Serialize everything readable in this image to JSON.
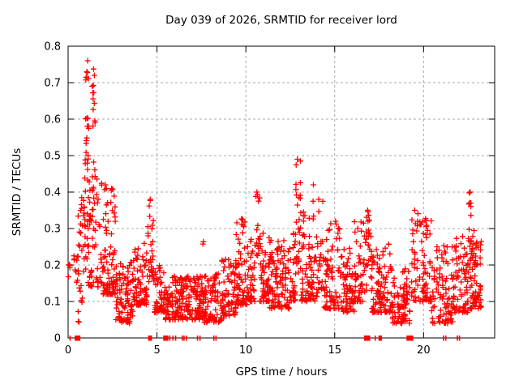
{
  "chart_data": {
    "type": "scatter",
    "title": "Day 039 of 2026, SRMTID for receiver lord",
    "xlabel": "GPS time / hours",
    "ylabel": "SRMTID / TECUs",
    "xlim": [
      0,
      24
    ],
    "ylim": [
      0,
      0.8
    ],
    "xticks": [
      0,
      5,
      10,
      15,
      20
    ],
    "yticks": [
      0,
      0.1,
      0.2,
      0.3,
      0.4,
      0.5,
      0.6,
      0.7,
      0.8
    ],
    "grid": true,
    "legend": "none",
    "marker": {
      "shape": "plus",
      "color": "#ff0000",
      "size": 7,
      "stroke_width": 1.3
    },
    "grid_color": "#a8a8a8",
    "axis_color": "#000000",
    "background": "#ffffff",
    "seed": 20260039,
    "scatter_segments": [
      {
        "x0": 0.02,
        "x1": 0.14,
        "n": 5,
        "ymin": 0.16,
        "ymax": 0.22,
        "bias": 1.0
      },
      {
        "x0": 0.3,
        "x1": 0.6,
        "n": 10,
        "ymin": 0.15,
        "ymax": 0.26,
        "bias": 1.4
      },
      {
        "x0": 0.55,
        "x1": 0.8,
        "n": 22,
        "ymin": 0.04,
        "ymax": 0.4,
        "bias": 1.2
      },
      {
        "x0": 0.8,
        "x1": 1.0,
        "n": 20,
        "ymin": 0.18,
        "ymax": 0.55,
        "bias": 1.1
      },
      {
        "x0": 0.98,
        "x1": 1.22,
        "n": 26,
        "ymin": 0.28,
        "ymax": 0.76,
        "bias": 1.1
      },
      {
        "x0": 1.35,
        "x1": 1.6,
        "n": 22,
        "ymin": 0.28,
        "ymax": 0.74,
        "bias": 1.15
      },
      {
        "x0": 1.05,
        "x1": 1.95,
        "n": 55,
        "ymin": 0.14,
        "ymax": 0.45,
        "bias": 1.8
      },
      {
        "x0": 1.95,
        "x1": 2.65,
        "n": 85,
        "ymin": 0.12,
        "ymax": 0.42,
        "bias": 2.6
      },
      {
        "x0": 2.65,
        "x1": 3.65,
        "n": 95,
        "ymin": 0.04,
        "ymax": 0.22,
        "bias": 1.6
      },
      {
        "x0": 3.65,
        "x1": 4.45,
        "n": 75,
        "ymin": 0.09,
        "ymax": 0.26,
        "bias": 1.8
      },
      {
        "x0": 4.45,
        "x1": 4.85,
        "n": 30,
        "ymin": 0.14,
        "ymax": 0.38,
        "bias": 1.3
      },
      {
        "x0": 4.85,
        "x1": 5.45,
        "n": 55,
        "ymin": 0.07,
        "ymax": 0.2,
        "bias": 1.7
      },
      {
        "x0": 5.45,
        "x1": 6.45,
        "n": 95,
        "ymin": 0.05,
        "ymax": 0.17,
        "bias": 1.5
      },
      {
        "x0": 6.45,
        "x1": 7.65,
        "n": 115,
        "ymin": 0.05,
        "ymax": 0.17,
        "bias": 1.5
      },
      {
        "x0": 7.5,
        "x1": 7.62,
        "n": 2,
        "ymin": 0.21,
        "ymax": 0.27,
        "bias": 1.0
      },
      {
        "x0": 7.65,
        "x1": 8.65,
        "n": 90,
        "ymin": 0.04,
        "ymax": 0.18,
        "bias": 1.5
      },
      {
        "x0": 8.65,
        "x1": 9.45,
        "n": 70,
        "ymin": 0.06,
        "ymax": 0.22,
        "bias": 1.6
      },
      {
        "x0": 9.45,
        "x1": 10.15,
        "n": 65,
        "ymin": 0.09,
        "ymax": 0.33,
        "bias": 2.0
      },
      {
        "x0": 10.15,
        "x1": 10.55,
        "n": 35,
        "ymin": 0.1,
        "ymax": 0.28,
        "bias": 1.8
      },
      {
        "x0": 10.55,
        "x1": 10.78,
        "n": 14,
        "ymin": 0.22,
        "ymax": 0.4,
        "bias": 1.1
      },
      {
        "x0": 10.78,
        "x1": 11.35,
        "n": 60,
        "ymin": 0.1,
        "ymax": 0.3,
        "bias": 2.0
      },
      {
        "x0": 11.35,
        "x1": 12.45,
        "n": 100,
        "ymin": 0.08,
        "ymax": 0.28,
        "bias": 2.0
      },
      {
        "x0": 12.45,
        "x1": 12.8,
        "n": 30,
        "ymin": 0.1,
        "ymax": 0.3,
        "bias": 1.8
      },
      {
        "x0": 12.8,
        "x1": 13.1,
        "n": 26,
        "ymin": 0.18,
        "ymax": 0.49,
        "bias": 1.2
      },
      {
        "x0": 13.1,
        "x1": 13.6,
        "n": 45,
        "ymin": 0.1,
        "ymax": 0.35,
        "bias": 2.0
      },
      {
        "x0": 13.75,
        "x1": 13.85,
        "n": 3,
        "ymin": 0.3,
        "ymax": 0.42,
        "bias": 1.0
      },
      {
        "x0": 13.6,
        "x1": 14.0,
        "n": 35,
        "ymin": 0.1,
        "ymax": 0.28,
        "bias": 1.8
      },
      {
        "x0": 14.0,
        "x1": 14.4,
        "n": 26,
        "ymin": 0.12,
        "ymax": 0.38,
        "bias": 1.4
      },
      {
        "x0": 14.4,
        "x1": 15.35,
        "n": 75,
        "ymin": 0.08,
        "ymax": 0.32,
        "bias": 2.0
      },
      {
        "x0": 15.35,
        "x1": 16.1,
        "n": 65,
        "ymin": 0.07,
        "ymax": 0.25,
        "bias": 1.8
      },
      {
        "x0": 16.1,
        "x1": 16.65,
        "n": 45,
        "ymin": 0.1,
        "ymax": 0.32,
        "bias": 1.7
      },
      {
        "x0": 16.65,
        "x1": 17.05,
        "n": 28,
        "ymin": 0.12,
        "ymax": 0.35,
        "bias": 1.4
      },
      {
        "x0": 17.05,
        "x1": 18.25,
        "n": 105,
        "ymin": 0.07,
        "ymax": 0.26,
        "bias": 1.9
      },
      {
        "x0": 18.25,
        "x1": 19.25,
        "n": 80,
        "ymin": 0.04,
        "ymax": 0.19,
        "bias": 1.6
      },
      {
        "x0": 19.3,
        "x1": 19.7,
        "n": 30,
        "ymin": 0.1,
        "ymax": 0.35,
        "bias": 1.3
      },
      {
        "x0": 19.7,
        "x1": 20.45,
        "n": 60,
        "ymin": 0.1,
        "ymax": 0.33,
        "bias": 1.9
      },
      {
        "x0": 20.45,
        "x1": 21.65,
        "n": 90,
        "ymin": 0.04,
        "ymax": 0.26,
        "bias": 1.9
      },
      {
        "x0": 21.65,
        "x1": 22.5,
        "n": 75,
        "ymin": 0.07,
        "ymax": 0.29,
        "bias": 1.8
      },
      {
        "x0": 22.5,
        "x1": 22.78,
        "n": 15,
        "ymin": 0.18,
        "ymax": 0.4,
        "bias": 1.2
      },
      {
        "x0": 22.6,
        "x1": 23.25,
        "n": 75,
        "ymin": 0.08,
        "ymax": 0.3,
        "bias": 1.6
      }
    ],
    "peaks": [
      {
        "x": 1.1,
        "y": 0.76
      },
      {
        "x": 1.05,
        "y": 0.73
      },
      {
        "x": 1.48,
        "y": 0.72
      },
      {
        "x": 2.1,
        "y": 0.42
      },
      {
        "x": 4.62,
        "y": 0.38
      },
      {
        "x": 10.62,
        "y": 0.4
      },
      {
        "x": 12.9,
        "y": 0.49
      },
      {
        "x": 13.8,
        "y": 0.42
      },
      {
        "x": 14.1,
        "y": 0.38
      },
      {
        "x": 15.05,
        "y": 0.32
      },
      {
        "x": 16.3,
        "y": 0.3
      },
      {
        "x": 16.85,
        "y": 0.35
      },
      {
        "x": 19.5,
        "y": 0.35
      },
      {
        "x": 22.62,
        "y": 0.4
      },
      {
        "x": 22.66,
        "y": 0.37
      }
    ],
    "zero_markers": [
      {
        "x0": 0.08,
        "x1": 0.14
      },
      {
        "x0": 0.37,
        "x1": 0.69
      },
      {
        "x0": 4.5,
        "x1": 4.72
      },
      {
        "x0": 5.35,
        "x1": 5.64
      },
      {
        "x0": 5.7,
        "x1": 5.74
      },
      {
        "x0": 5.88,
        "x1": 5.92
      },
      {
        "x0": 6.03,
        "x1": 6.07
      },
      {
        "x0": 6.4,
        "x1": 6.44
      },
      {
        "x0": 6.5,
        "x1": 6.54
      },
      {
        "x0": 6.63,
        "x1": 6.67
      },
      {
        "x0": 7.26,
        "x1": 7.3
      },
      {
        "x0": 7.4,
        "x1": 7.44
      },
      {
        "x0": 8.18,
        "x1": 8.22
      },
      {
        "x0": 8.3,
        "x1": 8.34
      },
      {
        "x0": 16.65,
        "x1": 17.0
      },
      {
        "x0": 17.25,
        "x1": 17.31
      },
      {
        "x0": 17.46,
        "x1": 17.66
      },
      {
        "x0": 19.04,
        "x1": 19.42
      },
      {
        "x0": 21.1,
        "x1": 21.14
      },
      {
        "x0": 21.23,
        "x1": 21.27
      },
      {
        "x0": 21.88,
        "x1": 21.92
      },
      {
        "x0": 22.0,
        "x1": 22.04
      }
    ]
  }
}
